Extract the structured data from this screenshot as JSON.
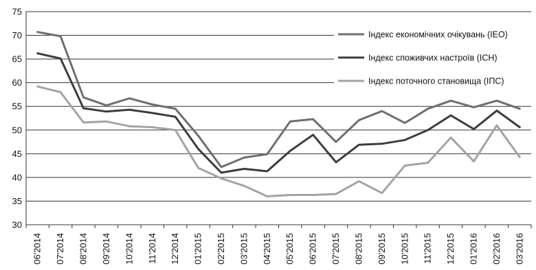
{
  "chart_data": {
    "type": "line",
    "categories": [
      "06'2014",
      "07'2014",
      "08'2014",
      "09'2014",
      "10'2014",
      "11'2014",
      "12'2014",
      "01'2015",
      "02'2015",
      "03'2015",
      "04'2015",
      "05'2015",
      "06'2015",
      "07'2015",
      "08'2015",
      "09'2015",
      "10'2015",
      "11'2015",
      "12'2015",
      "01'2016",
      "02'2016",
      "03'2016"
    ],
    "y_ticks": [
      30,
      35,
      40,
      45,
      50,
      55,
      60,
      65,
      70,
      75
    ],
    "ylim": [
      30,
      75
    ],
    "grid": "horizontal",
    "legend_position": "top-right",
    "series": [
      {
        "name": "Індекс економічних очікувань (ІЕО)",
        "color": "#6e6e6e",
        "values": [
          70.7,
          69.8,
          56.9,
          55.2,
          56.7,
          55.4,
          54.5,
          48.8,
          42.2,
          44.2,
          44.9,
          51.8,
          52.3,
          47.5,
          52.1,
          54.0,
          51.5,
          54.5,
          56.2,
          54.8,
          56.2,
          54.5
        ]
      },
      {
        "name": "Індекс споживчих настроїв (ІСН)",
        "color": "#3c3c3c",
        "values": [
          66.2,
          65.1,
          54.6,
          53.9,
          54.3,
          53.6,
          52.8,
          46.0,
          41.0,
          41.8,
          41.3,
          45.6,
          49.0,
          43.2,
          46.9,
          47.1,
          47.9,
          50.0,
          53.1,
          50.2,
          54.1,
          50.6
        ]
      },
      {
        "name": "Індекс поточного становища (ІПС)",
        "color": "#a3a3a3",
        "values": [
          59.2,
          58.0,
          51.6,
          51.8,
          50.8,
          50.6,
          50.0,
          42.0,
          39.8,
          38.2,
          36.0,
          36.3,
          36.3,
          36.5,
          39.2,
          36.7,
          42.5,
          43.1,
          48.4,
          43.4,
          51.0,
          44.3
        ]
      }
    ]
  }
}
